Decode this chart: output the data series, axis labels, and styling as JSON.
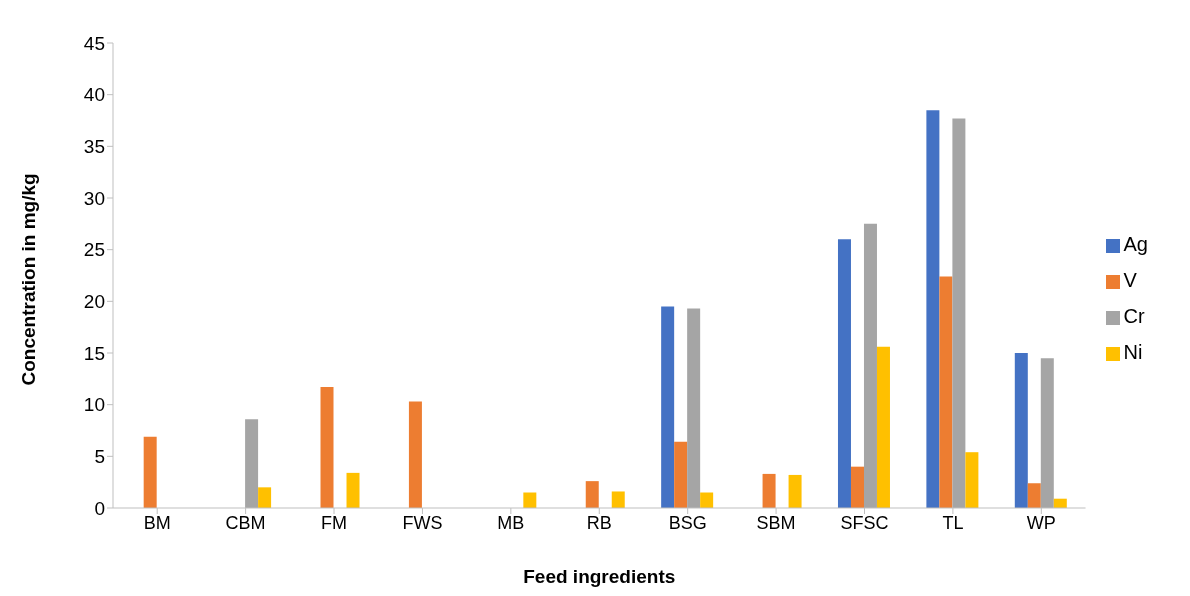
{
  "chart_data": {
    "type": "bar",
    "xlabel": "Feed ingredients",
    "ylabel": "Concentration in mg/kg",
    "categories": [
      "BM",
      "CBM",
      "FM",
      "FWS",
      "MB",
      "RB",
      "BSG",
      "SBM",
      "SFSC",
      "TL",
      "WP"
    ],
    "series": [
      {
        "name": "Ag",
        "color": "#4472c4",
        "values": [
          null,
          null,
          null,
          null,
          null,
          null,
          19.5,
          null,
          26.0,
          38.5,
          15.0
        ]
      },
      {
        "name": "V",
        "color": "#ed7d31",
        "values": [
          6.9,
          null,
          11.7,
          10.3,
          null,
          2.6,
          6.4,
          3.3,
          4.0,
          22.4,
          2.4
        ]
      },
      {
        "name": "Cr",
        "color": "#a5a5a5",
        "values": [
          null,
          8.6,
          null,
          null,
          null,
          null,
          19.3,
          null,
          27.5,
          37.7,
          14.5
        ]
      },
      {
        "name": "Ni",
        "color": "#ffc000",
        "values": [
          null,
          2.0,
          3.4,
          null,
          1.5,
          1.6,
          1.5,
          3.2,
          15.6,
          5.4,
          0.9
        ]
      }
    ],
    "ylim": [
      0,
      45
    ],
    "yticks": [
      0,
      5,
      10,
      15,
      20,
      25,
      30,
      35,
      40,
      45
    ],
    "grid": false,
    "legend": "right"
  }
}
